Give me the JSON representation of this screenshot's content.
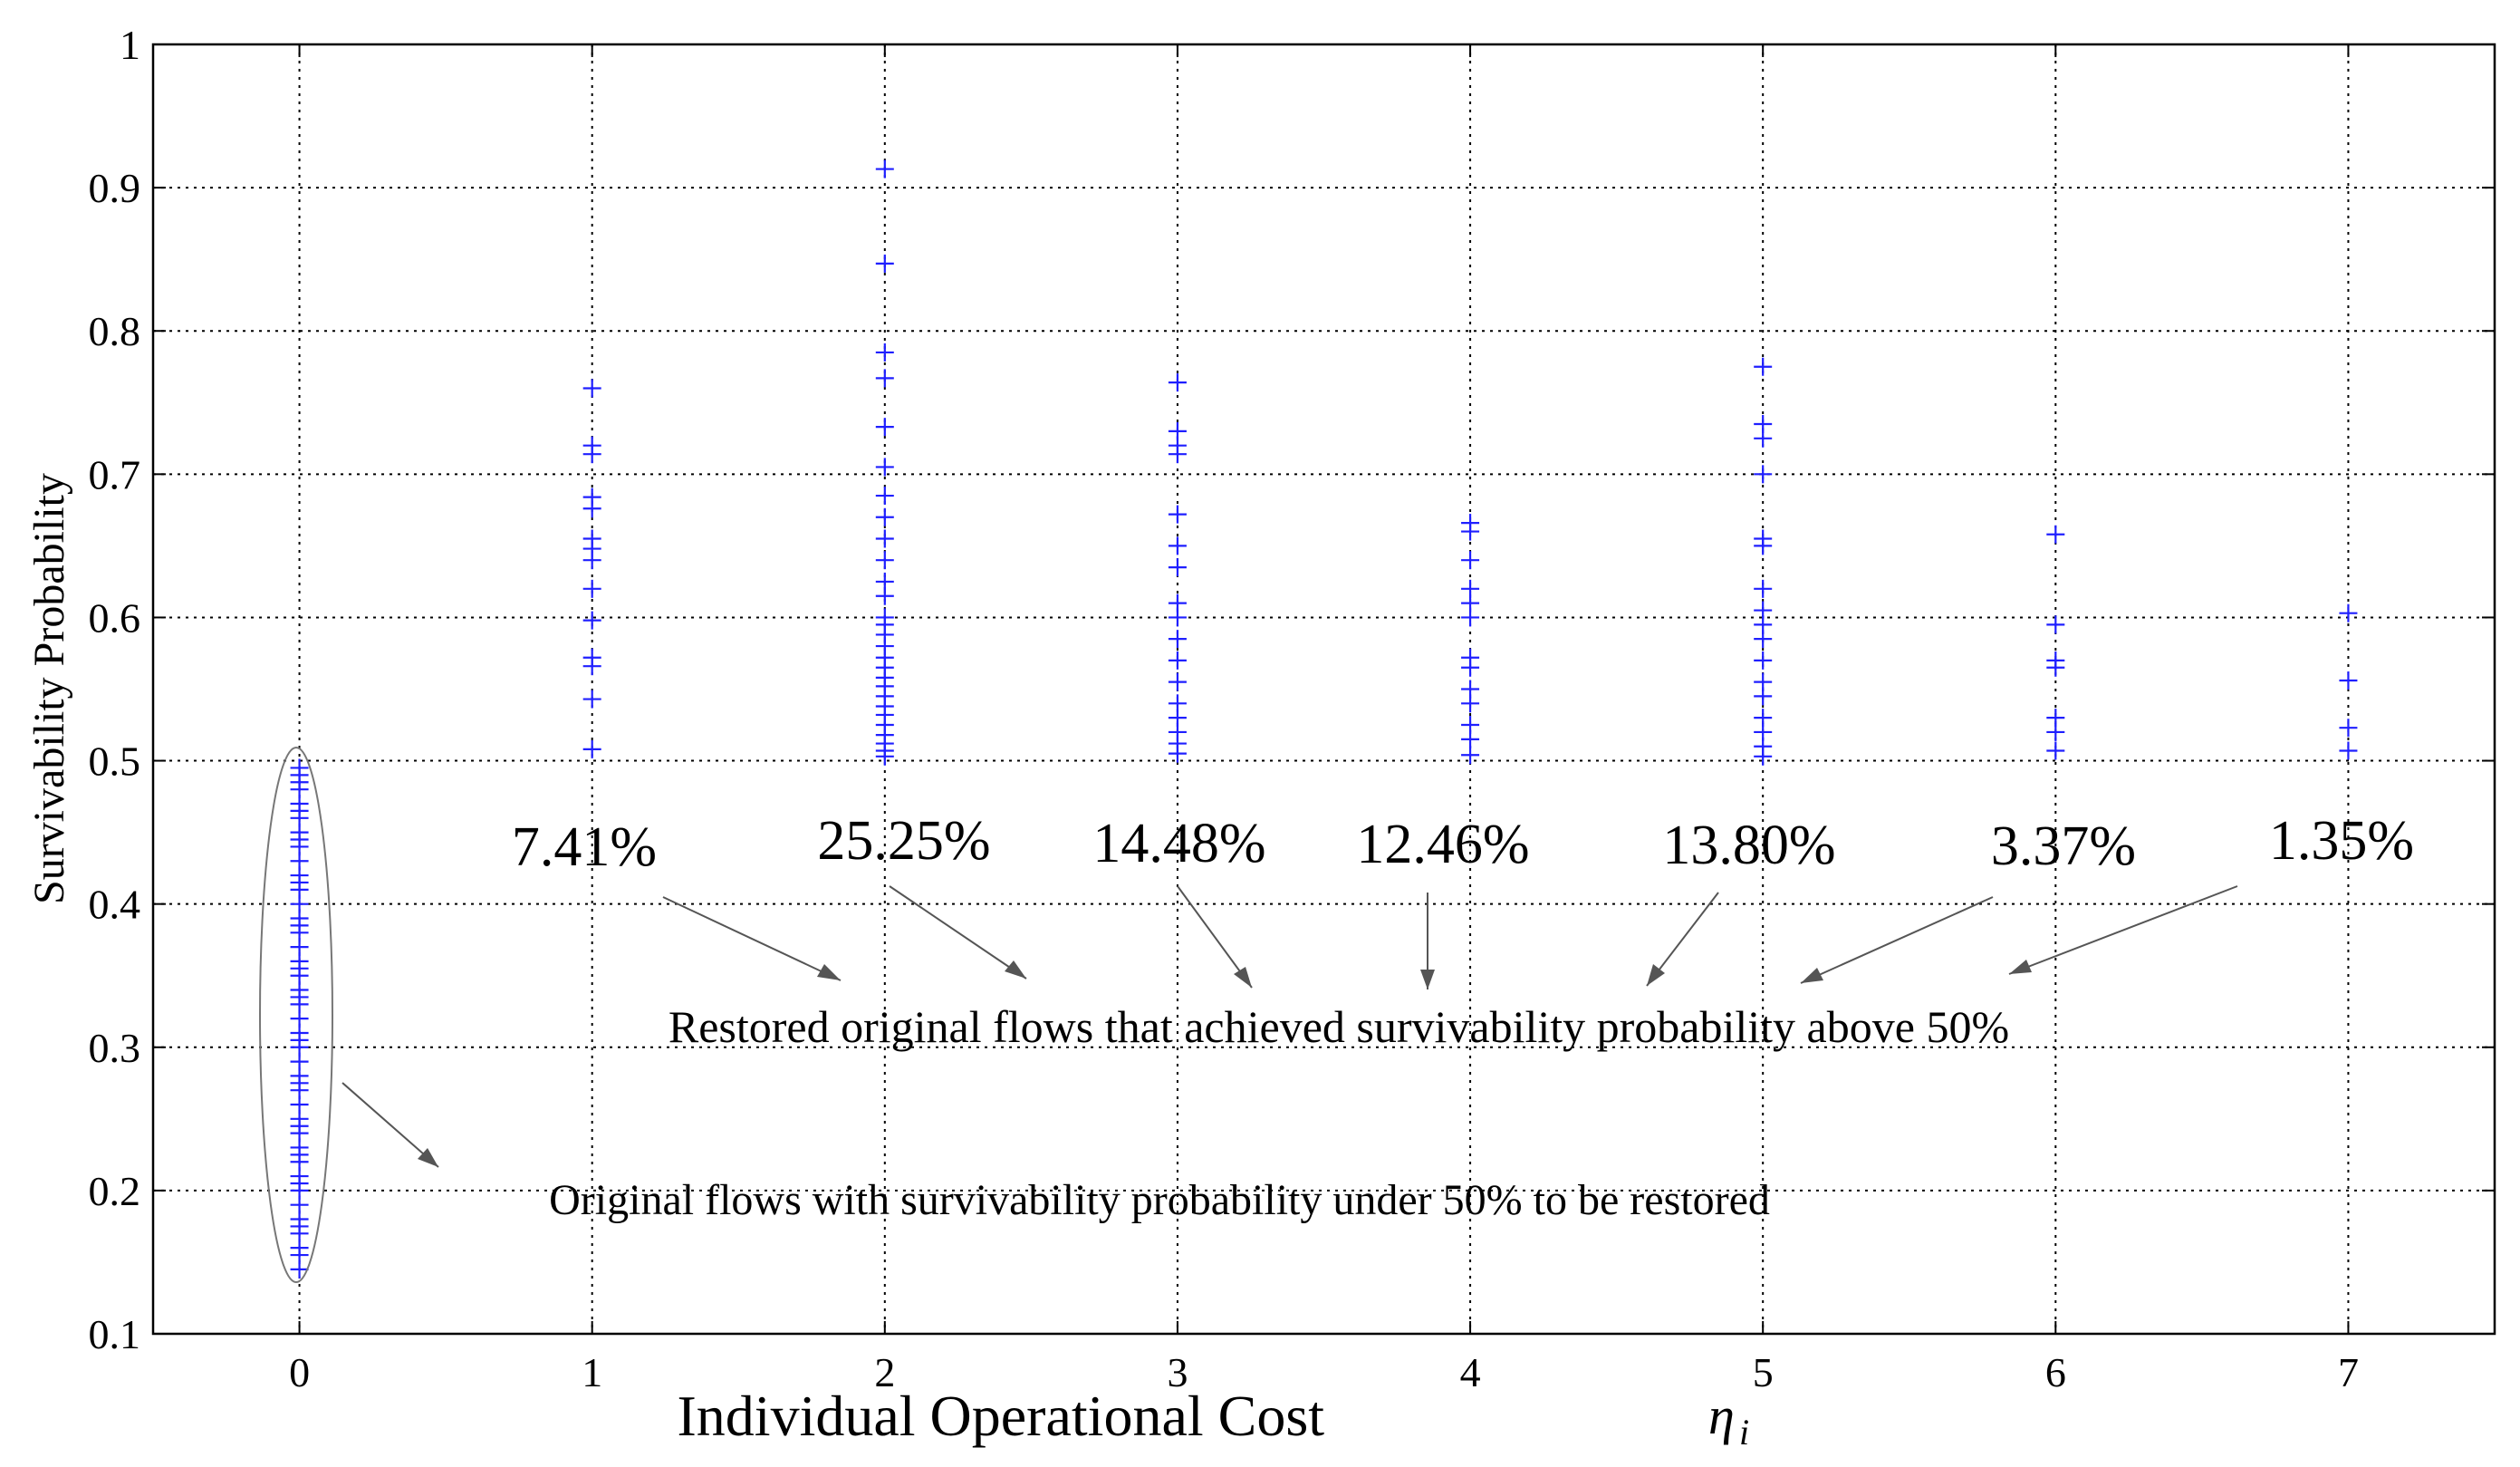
{
  "chart_data": {
    "type": "scatter",
    "title": "",
    "xlabel": "Individual Operational Cost",
    "xlabel_symbol": "η",
    "xlabel_subscript": "i",
    "ylabel": "Survivability Probability",
    "xlim": [
      -0.5,
      7.5
    ],
    "ylim": [
      0.1,
      1
    ],
    "grid": true,
    "marker": "+",
    "color": "#1f1fff",
    "x_ticks": [
      "0",
      "1",
      "2",
      "3",
      "4",
      "5",
      "6",
      "7"
    ],
    "y_ticks": [
      "0.1",
      "0.2",
      "0.3",
      "0.4",
      "0.5",
      "0.6",
      "0.7",
      "0.8",
      "0.9",
      "1"
    ],
    "series": [
      {
        "x": 0,
        "values": [
          0.145,
          0.155,
          0.16,
          0.17,
          0.175,
          0.18,
          0.19,
          0.2,
          0.205,
          0.21,
          0.22,
          0.225,
          0.23,
          0.24,
          0.245,
          0.25,
          0.26,
          0.27,
          0.275,
          0.28,
          0.29,
          0.3,
          0.305,
          0.31,
          0.32,
          0.33,
          0.335,
          0.34,
          0.35,
          0.355,
          0.36,
          0.37,
          0.38,
          0.385,
          0.39,
          0.4,
          0.41,
          0.415,
          0.42,
          0.43,
          0.44,
          0.445,
          0.45,
          0.46,
          0.465,
          0.47,
          0.48,
          0.485,
          0.49,
          0.495
        ]
      },
      {
        "x": 1,
        "values": [
          0.508,
          0.543,
          0.566,
          0.572,
          0.598,
          0.62,
          0.64,
          0.648,
          0.655,
          0.676,
          0.684,
          0.714,
          0.72,
          0.76
        ]
      },
      {
        "x": 2,
        "values": [
          0.503,
          0.507,
          0.512,
          0.518,
          0.525,
          0.532,
          0.538,
          0.545,
          0.552,
          0.558,
          0.565,
          0.572,
          0.58,
          0.588,
          0.595,
          0.6,
          0.615,
          0.625,
          0.64,
          0.655,
          0.67,
          0.685,
          0.705,
          0.733,
          0.767,
          0.785,
          0.847,
          0.913
        ]
      },
      {
        "x": 3,
        "values": [
          0.505,
          0.512,
          0.52,
          0.53,
          0.54,
          0.555,
          0.57,
          0.585,
          0.6,
          0.61,
          0.635,
          0.65,
          0.672,
          0.714,
          0.72,
          0.73,
          0.764
        ]
      },
      {
        "x": 4,
        "values": [
          0.504,
          0.515,
          0.525,
          0.54,
          0.55,
          0.565,
          0.572,
          0.6,
          0.61,
          0.62,
          0.64,
          0.66,
          0.666
        ]
      },
      {
        "x": 5,
        "values": [
          0.503,
          0.51,
          0.52,
          0.53,
          0.545,
          0.555,
          0.57,
          0.585,
          0.595,
          0.605,
          0.62,
          0.65,
          0.655,
          0.7,
          0.725,
          0.735,
          0.775
        ]
      },
      {
        "x": 6,
        "values": [
          0.507,
          0.52,
          0.53,
          0.565,
          0.57,
          0.595,
          0.658
        ]
      },
      {
        "x": 7,
        "values": [
          0.507,
          0.523,
          0.556,
          0.603
        ]
      }
    ],
    "percent_labels": [
      {
        "x": 1,
        "label": "7.41%"
      },
      {
        "x": 2,
        "label": "25.25%"
      },
      {
        "x": 3,
        "label": "14.48%"
      },
      {
        "x": 4,
        "label": "12.46%"
      },
      {
        "x": 5,
        "label": "13.80%"
      },
      {
        "x": 6,
        "label": "3.37%"
      },
      {
        "x": 7,
        "label": "1.35%"
      }
    ],
    "annotations": {
      "restored": "Restored original flows that achieved survivability probability above 50%",
      "original": "Original flows with survivability probability under 50% to be restored"
    }
  }
}
